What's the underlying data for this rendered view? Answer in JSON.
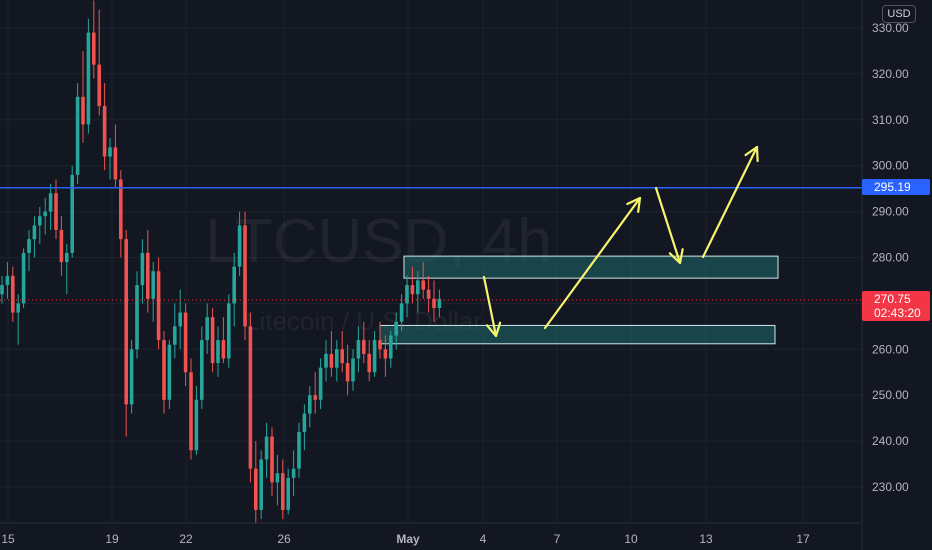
{
  "currency": "USD",
  "watermark": {
    "symbol": "LTCUSD, 4h",
    "name": "Litecoin / U.S. Dollar"
  },
  "last_price": {
    "price": "270.75",
    "countdown": "02:43:20"
  },
  "hline": {
    "price": "295.19",
    "value": 295.19,
    "color": "#2962ff"
  },
  "colors": {
    "up": "#26a69a",
    "down": "#ef5350",
    "bg": "#131722",
    "grid": "#1e222d",
    "text": "#b2b5be",
    "arrow": "#f7f56b",
    "zone_fill": "#1f6b6b",
    "zone_stroke": "#cfe8ea"
  },
  "chart_data": {
    "type": "candlestick",
    "y_axis": {
      "range": [
        222,
        336
      ],
      "ticks": [
        230,
        240,
        250,
        260,
        270,
        280,
        290,
        300,
        310,
        320,
        330
      ],
      "tick_labels": [
        "230.00",
        "240.00",
        "250.00",
        "260.00",
        "270.00",
        "280.00",
        "290.00",
        "300.00",
        "310.00",
        "320.00",
        "330.00"
      ]
    },
    "x_axis": {
      "tick_labels": [
        "15",
        "19",
        "22",
        "26",
        "May",
        "4",
        "7",
        "10",
        "13",
        "17"
      ]
    },
    "zones": [
      {
        "y_low": 275.5,
        "y_high": 280.3
      },
      {
        "y_low": 261.2,
        "y_high": 265.2
      }
    ],
    "candles": [
      [
        272,
        276,
        270,
        274
      ],
      [
        274,
        279,
        271,
        276
      ],
      [
        276,
        278,
        266,
        268
      ],
      [
        268,
        272,
        261,
        270
      ],
      [
        270,
        282,
        269,
        281
      ],
      [
        281,
        286,
        277,
        284
      ],
      [
        284,
        289,
        280,
        287
      ],
      [
        287,
        291,
        283,
        289
      ],
      [
        289,
        293,
        285,
        290
      ],
      [
        290,
        296,
        286,
        294
      ],
      [
        294,
        297,
        284,
        286
      ],
      [
        286,
        289,
        276,
        279
      ],
      [
        279,
        283,
        272,
        281
      ],
      [
        281,
        300,
        280,
        298
      ],
      [
        298,
        318,
        296,
        315
      ],
      [
        315,
        325,
        305,
        309
      ],
      [
        309,
        332,
        307,
        329
      ],
      [
        329,
        336,
        319,
        322
      ],
      [
        322,
        334,
        311,
        313
      ],
      [
        313,
        318,
        299,
        302
      ],
      [
        302,
        306,
        297,
        304
      ],
      [
        304,
        309,
        295,
        297
      ],
      [
        297,
        299,
        280,
        284
      ],
      [
        284,
        286,
        241,
        248
      ],
      [
        248,
        262,
        246,
        260
      ],
      [
        260,
        277,
        258,
        274
      ],
      [
        274,
        284,
        270,
        281
      ],
      [
        281,
        286,
        268,
        271
      ],
      [
        271,
        279,
        266,
        277
      ],
      [
        277,
        280,
        260,
        262
      ],
      [
        262,
        264,
        246,
        249
      ],
      [
        249,
        262,
        247,
        261
      ],
      [
        261,
        270,
        258,
        265
      ],
      [
        265,
        273,
        260,
        268
      ],
      [
        268,
        270,
        252,
        255
      ],
      [
        255,
        258,
        236,
        238
      ],
      [
        238,
        252,
        237,
        249
      ],
      [
        249,
        265,
        247,
        262
      ],
      [
        262,
        270,
        259,
        267
      ],
      [
        267,
        269,
        255,
        257
      ],
      [
        257,
        265,
        254,
        262
      ],
      [
        262,
        267,
        257,
        258
      ],
      [
        258,
        272,
        256,
        270
      ],
      [
        270,
        281,
        265,
        278
      ],
      [
        278,
        290,
        276,
        287
      ],
      [
        287,
        290,
        262,
        265
      ],
      [
        265,
        268,
        231,
        234
      ],
      [
        234,
        240,
        222,
        225
      ],
      [
        225,
        238,
        223,
        236
      ],
      [
        236,
        244,
        232,
        241
      ],
      [
        241,
        243,
        228,
        231
      ],
      [
        231,
        237,
        226,
        233
      ],
      [
        233,
        236,
        223,
        225
      ],
      [
        225,
        234,
        224,
        232
      ],
      [
        232,
        238,
        228,
        234
      ],
      [
        234,
        244,
        232,
        242
      ],
      [
        242,
        248,
        238,
        246
      ],
      [
        246,
        252,
        243,
        250
      ],
      [
        250,
        255,
        246,
        249
      ],
      [
        249,
        258,
        247,
        256
      ],
      [
        256,
        262,
        253,
        259
      ],
      [
        259,
        264,
        254,
        256
      ],
      [
        256,
        262,
        253,
        260
      ],
      [
        260,
        264,
        255,
        257
      ],
      [
        257,
        261,
        250,
        253
      ],
      [
        253,
        260,
        251,
        258
      ],
      [
        258,
        265,
        255,
        262
      ],
      [
        262,
        266,
        257,
        259
      ],
      [
        259,
        262,
        253,
        255
      ],
      [
        255,
        264,
        254,
        262
      ],
      [
        262,
        266,
        258,
        260
      ],
      [
        260,
        263,
        254,
        258
      ],
      [
        258,
        264,
        256,
        263
      ],
      [
        263,
        268,
        260,
        266
      ],
      [
        266,
        272,
        264,
        270
      ],
      [
        270,
        276,
        267,
        274
      ],
      [
        274,
        278,
        270,
        272
      ],
      [
        272,
        277,
        268,
        275
      ],
      [
        275,
        279,
        271,
        273
      ],
      [
        273,
        276,
        268,
        271
      ],
      [
        271,
        275,
        266,
        269
      ],
      [
        269,
        273,
        267,
        271
      ]
    ]
  }
}
